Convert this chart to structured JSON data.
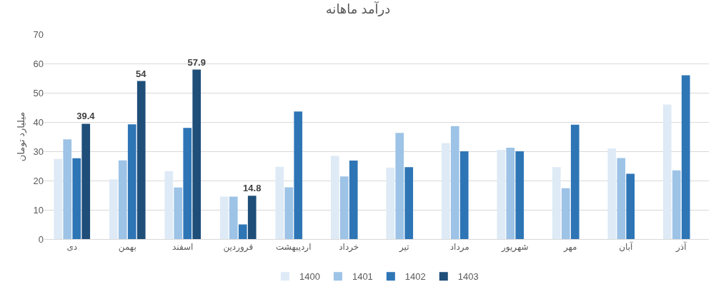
{
  "chart_data": {
    "type": "bar",
    "title": "درآمد ماهانه",
    "ylabel": "میلیارد تومان",
    "categories": [
      "دی",
      "بهمن",
      "اسفند",
      "فروردین",
      "اردیبهشت",
      "خرداد",
      "تیر",
      "مرداد",
      "شهریور",
      "مهر",
      "آبان",
      "آذر"
    ],
    "series": [
      {
        "name": "1400",
        "color": "#deeaf6",
        "values": [
          27.4,
          20.4,
          23.2,
          14.5,
          24.7,
          28.4,
          24.4,
          32.8,
          30.5,
          24.6,
          31,
          46
        ]
      },
      {
        "name": "1401",
        "color": "#9dc3e6",
        "values": [
          34.1,
          26.9,
          17.6,
          14.5,
          17.7,
          21.4,
          36.3,
          38.6,
          31.2,
          17.4,
          27.7,
          23.5
        ]
      },
      {
        "name": "1402",
        "color": "#2e75b6",
        "values": [
          27.6,
          39.2,
          38,
          5,
          43.6,
          26.8,
          24.6,
          30,
          30,
          39.1,
          22.3,
          56
        ]
      },
      {
        "name": "1403",
        "color": "#1f4e79",
        "values": [
          39.4,
          54,
          57.9,
          14.8,
          null,
          null,
          null,
          null,
          null,
          null,
          null,
          null
        ],
        "value_labels": [
          "39.4",
          "54",
          "57.9",
          "14.8",
          null,
          null,
          null,
          null,
          null,
          null,
          null,
          null
        ]
      }
    ],
    "ylim": [
      0,
      70
    ],
    "yticks": [
      0,
      10,
      20,
      30,
      40,
      50,
      60,
      70
    ],
    "grid": "y",
    "legend": "bottom"
  }
}
